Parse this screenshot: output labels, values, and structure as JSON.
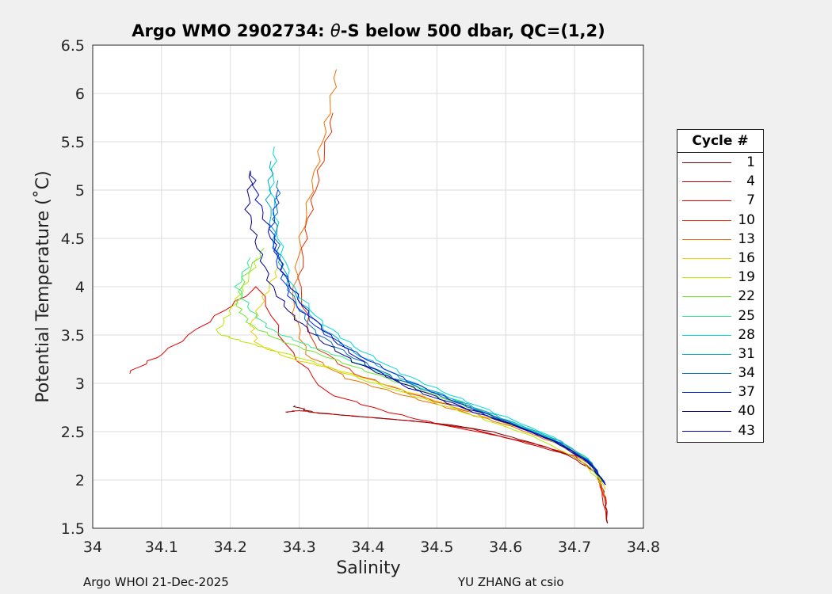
{
  "footer": {
    "left": "Argo WHOI 21-Dec-2025",
    "right": "YU ZHANG at csio"
  },
  "legend": {
    "title": "Cycle #",
    "items": [
      {
        "label": "1",
        "color": "#800000"
      },
      {
        "label": "4",
        "color": "#b00000"
      },
      {
        "label": "7",
        "color": "#e00000"
      },
      {
        "label": "10",
        "color": "#e83000"
      },
      {
        "label": "13",
        "color": "#f07000"
      },
      {
        "label": "16",
        "color": "#e8d000"
      },
      {
        "label": "19",
        "color": "#b8e800"
      },
      {
        "label": "22",
        "color": "#70e830"
      },
      {
        "label": "25",
        "color": "#30e890"
      },
      {
        "label": "28",
        "color": "#00d8d8"
      },
      {
        "label": "31",
        "color": "#00a8c8"
      },
      {
        "label": "34",
        "color": "#0070b0"
      },
      {
        "label": "37",
        "color": "#0030e0"
      },
      {
        "label": "40",
        "color": "#000080"
      },
      {
        "label": "43",
        "color": "#0000c0"
      }
    ]
  },
  "chart_data": {
    "type": "line",
    "title_prefix": "Argo WMO 2902734: ",
    "title_symbol": "θ",
    "title_suffix": "-S below 500 dbar,  QC=(1,2)",
    "xlabel": "Salinity",
    "ylabel": "Potential Temperature (˚C)",
    "xlim": [
      34,
      34.8
    ],
    "ylim": [
      1.5,
      6.5
    ],
    "xticks": [
      34,
      34.1,
      34.2,
      34.3,
      34.4,
      34.5,
      34.6,
      34.7,
      34.8
    ],
    "yticks": [
      1.5,
      2,
      2.5,
      3,
      3.5,
      4,
      4.5,
      5,
      5.5,
      6,
      6.5
    ],
    "grid": true,
    "legend_position": "outside-right",
    "series": [
      {
        "name": "1",
        "s": [
          34.29,
          34.32,
          34.38,
          34.45,
          34.52,
          34.58,
          34.64,
          34.7,
          34.735,
          34.745,
          34.748
        ],
        "theta": [
          2.77,
          2.7,
          2.66,
          2.62,
          2.57,
          2.5,
          2.38,
          2.24,
          2.05,
          1.8,
          1.55
        ]
      },
      {
        "name": "4",
        "s": [
          34.28,
          34.3,
          34.33,
          34.4,
          34.48,
          34.55,
          34.62,
          34.69,
          34.73,
          34.745,
          34.747
        ],
        "theta": [
          2.7,
          2.72,
          2.69,
          2.65,
          2.6,
          2.53,
          2.4,
          2.26,
          2.08,
          1.82,
          1.56
        ]
      },
      {
        "name": "7",
        "s": [
          34.05,
          34.1,
          34.18,
          34.24,
          34.28,
          34.34,
          34.42,
          34.5,
          34.58,
          34.65,
          34.7,
          34.735,
          34.746
        ],
        "theta": [
          3.1,
          3.3,
          3.7,
          4.0,
          3.4,
          2.9,
          2.72,
          2.58,
          2.47,
          2.36,
          2.25,
          2.05,
          1.6
        ]
      },
      {
        "name": "10",
        "s": [
          34.35,
          34.33,
          34.31,
          34.3,
          34.32,
          34.38,
          34.46,
          34.54,
          34.62,
          34.69,
          34.73,
          34.745
        ],
        "theta": [
          5.8,
          5.2,
          4.6,
          4.0,
          3.4,
          3.1,
          2.9,
          2.72,
          2.55,
          2.34,
          2.12,
          1.75
        ]
      },
      {
        "name": "13",
        "s": [
          34.355,
          34.34,
          34.32,
          34.3,
          34.29,
          34.31,
          34.37,
          34.45,
          34.53,
          34.61,
          34.68,
          34.73,
          34.745
        ],
        "theta": [
          6.25,
          5.7,
          5.1,
          4.4,
          3.8,
          3.3,
          3.05,
          2.88,
          2.72,
          2.55,
          2.36,
          2.12,
          1.8
        ]
      },
      {
        "name": "16",
        "s": [
          34.27,
          34.25,
          34.23,
          34.24,
          34.29,
          34.35,
          34.42,
          34.5,
          34.58,
          34.66,
          34.72,
          34.745
        ],
        "theta": [
          4.2,
          3.9,
          3.6,
          3.4,
          3.25,
          3.15,
          3.0,
          2.82,
          2.63,
          2.45,
          2.22,
          1.9
        ]
      },
      {
        "name": "19",
        "s": [
          34.24,
          34.22,
          34.2,
          34.18,
          34.21,
          34.26,
          34.33,
          34.4,
          34.48,
          34.56,
          34.64,
          34.71,
          34.74
        ],
        "theta": [
          4.3,
          4.0,
          3.75,
          3.52,
          3.45,
          3.35,
          3.2,
          3.02,
          2.84,
          2.65,
          2.45,
          2.2,
          1.95
        ]
      },
      {
        "name": "22",
        "s": [
          34.25,
          34.22,
          34.21,
          34.23,
          34.27,
          34.33,
          34.4,
          34.48,
          34.56,
          34.64,
          34.71,
          34.74
        ],
        "theta": [
          4.4,
          4.1,
          3.8,
          3.6,
          3.45,
          3.3,
          3.12,
          2.92,
          2.72,
          2.5,
          2.25,
          1.98
        ]
      },
      {
        "name": "25",
        "s": [
          34.23,
          34.21,
          34.23,
          34.26,
          34.31,
          34.37,
          34.44,
          34.52,
          34.6,
          34.67,
          34.72,
          34.745
        ],
        "theta": [
          4.3,
          4.0,
          3.75,
          3.55,
          3.4,
          3.25,
          3.05,
          2.85,
          2.62,
          2.42,
          2.2,
          1.95
        ]
      },
      {
        "name": "28",
        "s": [
          34.265,
          34.26,
          34.27,
          34.29,
          34.33,
          34.38,
          34.45,
          34.52,
          34.6,
          34.67,
          34.72,
          34.745
        ],
        "theta": [
          5.45,
          5.0,
          4.5,
          4.0,
          3.65,
          3.38,
          3.1,
          2.88,
          2.65,
          2.44,
          2.22,
          1.95
        ]
      },
      {
        "name": "31",
        "s": [
          34.26,
          34.255,
          34.265,
          34.29,
          34.33,
          34.38,
          34.45,
          34.53,
          34.61,
          34.68,
          34.725,
          34.745
        ],
        "theta": [
          5.3,
          4.9,
          4.4,
          3.95,
          3.6,
          3.32,
          3.05,
          2.82,
          2.6,
          2.4,
          2.18,
          1.95
        ]
      },
      {
        "name": "34",
        "s": [
          34.27,
          34.265,
          34.27,
          34.29,
          34.32,
          34.37,
          34.44,
          34.52,
          34.6,
          34.67,
          34.72,
          34.745
        ],
        "theta": [
          5.1,
          4.7,
          4.3,
          3.9,
          3.55,
          3.3,
          3.05,
          2.83,
          2.61,
          2.41,
          2.2,
          1.95
        ]
      },
      {
        "name": "37",
        "s": [
          34.27,
          34.26,
          34.27,
          34.29,
          34.33,
          34.39,
          34.46,
          34.53,
          34.61,
          34.68,
          34.725,
          34.745
        ],
        "theta": [
          5.0,
          4.6,
          4.2,
          3.85,
          3.55,
          3.28,
          3.02,
          2.8,
          2.58,
          2.38,
          2.17,
          1.95
        ]
      },
      {
        "name": "40",
        "s": [
          34.23,
          34.225,
          34.24,
          34.26,
          34.29,
          34.33,
          34.38,
          34.45,
          34.52,
          34.6,
          34.67,
          34.72,
          34.745
        ],
        "theta": [
          5.2,
          4.8,
          4.4,
          4.0,
          3.7,
          3.45,
          3.22,
          3.0,
          2.8,
          2.6,
          2.4,
          2.18,
          1.95
        ]
      },
      {
        "name": "43",
        "s": [
          34.23,
          34.24,
          34.26,
          34.28,
          34.31,
          34.35,
          34.4,
          34.46,
          34.53,
          34.61,
          34.68,
          34.725,
          34.745
        ],
        "theta": [
          5.2,
          4.9,
          4.5,
          4.1,
          3.75,
          3.45,
          3.18,
          2.95,
          2.76,
          2.57,
          2.37,
          2.16,
          1.95
        ]
      }
    ]
  }
}
